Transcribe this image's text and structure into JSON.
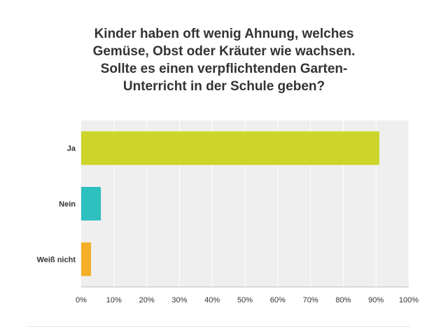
{
  "chart_data": {
    "type": "bar",
    "orientation": "horizontal",
    "title_lines": [
      "Kinder haben oft wenig Ahnung, welches",
      "Gemüse, Obst oder Kräuter wie wachsen.",
      "Sollte es einen verpflichtenden Garten-",
      "Unterricht in der Schule geben?"
    ],
    "categories": [
      "Ja",
      "Nein",
      "Weiß nicht"
    ],
    "values": [
      91,
      6,
      3
    ],
    "unit": "%",
    "colors": [
      "#cdd42a",
      "#2ebfbf",
      "#f5ae27"
    ],
    "xlim": [
      0,
      100
    ],
    "xticks": [
      0,
      10,
      20,
      30,
      40,
      50,
      60,
      70,
      80,
      90,
      100
    ],
    "xtick_labels": [
      "0%",
      "10%",
      "20%",
      "30%",
      "40%",
      "50%",
      "60%",
      "70%",
      "80%",
      "90%",
      "100%"
    ],
    "grid": true,
    "legend": "none"
  },
  "style": {
    "plot_background": "#efefef",
    "grid_color": "#ffffff",
    "text_color": "#333333"
  }
}
